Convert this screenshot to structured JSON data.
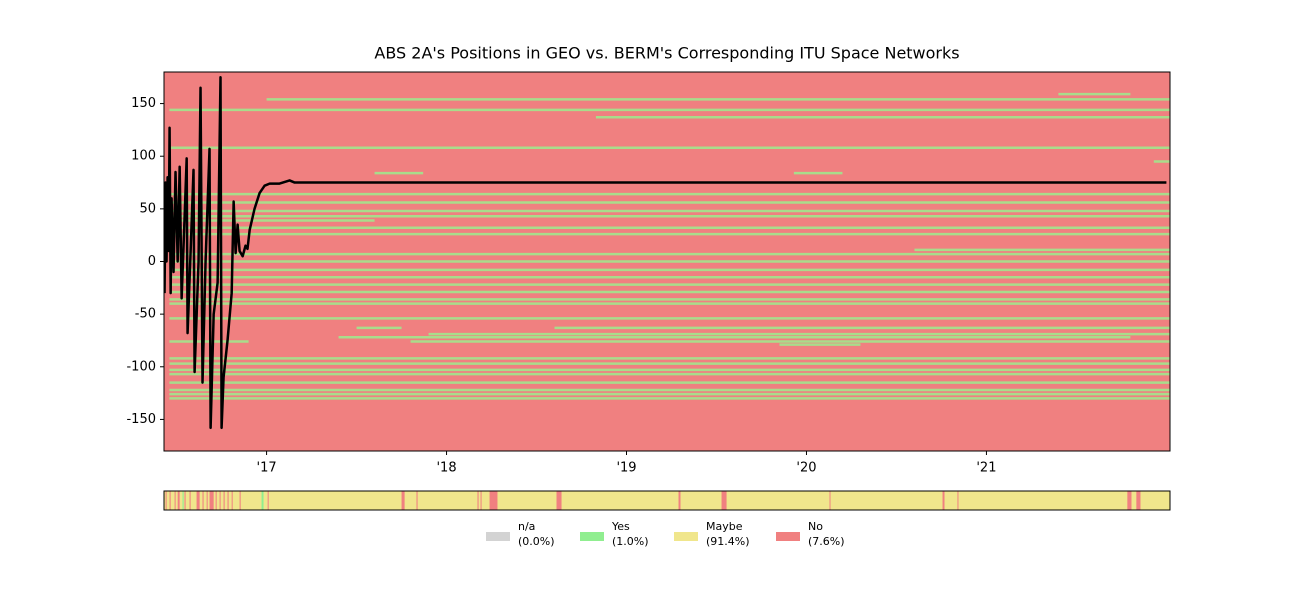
{
  "chart_data": {
    "type": "orbit",
    "title": "ABS 2A's Positions in GEO vs. BERM's Corresponding ITU Space Networks",
    "xlim": [
      2016.43,
      2022.02
    ],
    "ylim": [
      -180,
      180
    ],
    "xticks": [
      {
        "value": 2017,
        "label": "'17"
      },
      {
        "value": 2018,
        "label": "'18"
      },
      {
        "value": 2019,
        "label": "'19"
      },
      {
        "value": 2020,
        "label": "'20"
      },
      {
        "value": 2021,
        "label": "'21"
      }
    ],
    "yticks": [
      -150,
      -100,
      -50,
      0,
      50,
      100,
      150
    ],
    "background_color": "#f08080",
    "network_color": "#a9dc8b",
    "line_color": "#000000",
    "itu_networks": [
      {
        "y": 159,
        "start": 2021.4,
        "end": 2021.8
      },
      {
        "y": 154,
        "start": 2017.0,
        "end": 2022.02
      },
      {
        "y": 144,
        "start": 2016.46,
        "end": 2022.02
      },
      {
        "y": 137,
        "start": 2018.83,
        "end": 2022.02
      },
      {
        "y": 108,
        "start": 2016.46,
        "end": 2022.02
      },
      {
        "y": 95,
        "start": 2021.93,
        "end": 2022.02
      },
      {
        "y": 84,
        "start": 2017.6,
        "end": 2017.87
      },
      {
        "y": 84,
        "start": 2019.93,
        "end": 2020.2
      },
      {
        "y": 64,
        "start": 2016.46,
        "end": 2022.02
      },
      {
        "y": 56,
        "start": 2016.46,
        "end": 2022.02
      },
      {
        "y": 48,
        "start": 2016.46,
        "end": 2022.02
      },
      {
        "y": 43,
        "start": 2016.46,
        "end": 2022.02
      },
      {
        "y": 39,
        "start": 2016.46,
        "end": 2017.6
      },
      {
        "y": 32,
        "start": 2016.46,
        "end": 2022.02
      },
      {
        "y": 26,
        "start": 2016.46,
        "end": 2022.02
      },
      {
        "y": 11,
        "start": 2020.6,
        "end": 2022.02
      },
      {
        "y": 7,
        "start": 2016.46,
        "end": 2022.02
      },
      {
        "y": 0,
        "start": 2016.46,
        "end": 2022.02
      },
      {
        "y": -8,
        "start": 2016.46,
        "end": 2022.02
      },
      {
        "y": -15,
        "start": 2016.46,
        "end": 2022.02
      },
      {
        "y": -22,
        "start": 2016.46,
        "end": 2022.02
      },
      {
        "y": -29,
        "start": 2016.46,
        "end": 2022.02
      },
      {
        "y": -36,
        "start": 2016.46,
        "end": 2022.02
      },
      {
        "y": -40,
        "start": 2016.46,
        "end": 2022.02
      },
      {
        "y": -54,
        "start": 2016.46,
        "end": 2022.02
      },
      {
        "y": -63,
        "start": 2017.5,
        "end": 2017.75
      },
      {
        "y": -63,
        "start": 2018.6,
        "end": 2022.02
      },
      {
        "y": -69,
        "start": 2017.9,
        "end": 2022.02
      },
      {
        "y": -72,
        "start": 2017.4,
        "end": 2021.8
      },
      {
        "y": -76,
        "start": 2016.46,
        "end": 2016.9
      },
      {
        "y": -76,
        "start": 2017.8,
        "end": 2022.02
      },
      {
        "y": -79,
        "start": 2019.85,
        "end": 2020.3
      },
      {
        "y": -92,
        "start": 2016.46,
        "end": 2022.02
      },
      {
        "y": -97,
        "start": 2016.46,
        "end": 2022.02
      },
      {
        "y": -103,
        "start": 2016.46,
        "end": 2022.02
      },
      {
        "y": -107,
        "start": 2016.46,
        "end": 2022.02
      },
      {
        "y": -115,
        "start": 2016.46,
        "end": 2022.02
      },
      {
        "y": -122,
        "start": 2016.46,
        "end": 2022.02
      },
      {
        "y": -126,
        "start": 2016.46,
        "end": 2022.02
      },
      {
        "y": -130,
        "start": 2016.46,
        "end": 2022.02
      }
    ],
    "x": [
      2016.433,
      2016.439,
      2016.444,
      2016.45,
      2016.456,
      2016.461,
      2016.467,
      2016.472,
      2016.483,
      2016.494,
      2016.506,
      2016.517,
      2016.528,
      2016.544,
      2016.556,
      2016.561,
      2016.578,
      2016.594,
      2016.6,
      2016.622,
      2016.633,
      2016.644,
      2016.661,
      2016.683,
      2016.689,
      2016.706,
      2016.728,
      2016.744,
      2016.75,
      2016.761,
      2016.783,
      2016.806,
      2016.817,
      2016.828,
      2016.839,
      2016.85,
      2016.867,
      2016.883,
      2016.894,
      2016.906,
      2016.933,
      2016.961,
      2016.989,
      2017.017,
      2017.072,
      2017.128,
      2017.156,
      2022.0
    ],
    "values": [
      -30,
      75,
      0,
      80,
      10,
      127,
      -30,
      60,
      -10,
      85,
      0,
      90,
      -35,
      40,
      98,
      -68,
      10,
      87,
      -105,
      0,
      165,
      -115,
      0,
      107,
      -158,
      -50,
      -20,
      175,
      -158,
      -110,
      -75,
      -30,
      57,
      8,
      35,
      10,
      5,
      15,
      12,
      30,
      50,
      65,
      72,
      74,
      74,
      77,
      75,
      75
    ],
    "statuses": [
      {
        "name": "n/a",
        "color": "#d3d3d3",
        "share": 0.0,
        "share_label": "(0.0%)"
      },
      {
        "name": "Yes",
        "color": "#90ee90",
        "share": 1.0,
        "share_label": "(1.0%)"
      },
      {
        "name": "Maybe",
        "color": "#f0e68c",
        "share": 91.4,
        "share_label": "(91.4%)"
      },
      {
        "name": "No",
        "color": "#f08080",
        "share": 7.6,
        "share_label": "(7.6%)"
      }
    ],
    "strip_base_status": 2,
    "strip_segments": [
      {
        "status": 3,
        "start": 2016.439,
        "end": 2016.444
      },
      {
        "status": 3,
        "start": 2016.461,
        "end": 2016.467
      },
      {
        "status": 3,
        "start": 2016.489,
        "end": 2016.494
      },
      {
        "status": 3,
        "start": 2016.506,
        "end": 2016.517
      },
      {
        "status": 1,
        "start": 2016.533,
        "end": 2016.539
      },
      {
        "status": 3,
        "start": 2016.544,
        "end": 2016.55
      },
      {
        "status": 3,
        "start": 2016.572,
        "end": 2016.578
      },
      {
        "status": 3,
        "start": 2016.611,
        "end": 2016.628
      },
      {
        "status": 3,
        "start": 2016.644,
        "end": 2016.65
      },
      {
        "status": 3,
        "start": 2016.667,
        "end": 2016.672
      },
      {
        "status": 3,
        "start": 2016.683,
        "end": 2016.706
      },
      {
        "status": 3,
        "start": 2016.717,
        "end": 2016.722
      },
      {
        "status": 3,
        "start": 2016.739,
        "end": 2016.744
      },
      {
        "status": 3,
        "start": 2016.761,
        "end": 2016.767
      },
      {
        "status": 3,
        "start": 2016.783,
        "end": 2016.789
      },
      {
        "status": 3,
        "start": 2016.806,
        "end": 2016.811
      },
      {
        "status": 3,
        "start": 2016.85,
        "end": 2016.856
      },
      {
        "status": 1,
        "start": 2016.972,
        "end": 2016.983
      },
      {
        "status": 3,
        "start": 2017.006,
        "end": 2017.011
      },
      {
        "status": 3,
        "start": 2017.75,
        "end": 2017.767
      },
      {
        "status": 3,
        "start": 2017.833,
        "end": 2017.839
      },
      {
        "status": 3,
        "start": 2018.172,
        "end": 2018.178
      },
      {
        "status": 3,
        "start": 2018.189,
        "end": 2018.194
      },
      {
        "status": 3,
        "start": 2018.239,
        "end": 2018.283
      },
      {
        "status": 3,
        "start": 2018.611,
        "end": 2018.639
      },
      {
        "status": 3,
        "start": 2019.289,
        "end": 2019.3
      },
      {
        "status": 3,
        "start": 2019.528,
        "end": 2019.556
      },
      {
        "status": 3,
        "start": 2020.128,
        "end": 2020.133
      },
      {
        "status": 3,
        "start": 2020.756,
        "end": 2020.767
      },
      {
        "status": 3,
        "start": 2020.839,
        "end": 2020.844
      },
      {
        "status": 3,
        "start": 2021.783,
        "end": 2021.806
      },
      {
        "status": 3,
        "start": 2021.833,
        "end": 2021.856
      }
    ]
  }
}
